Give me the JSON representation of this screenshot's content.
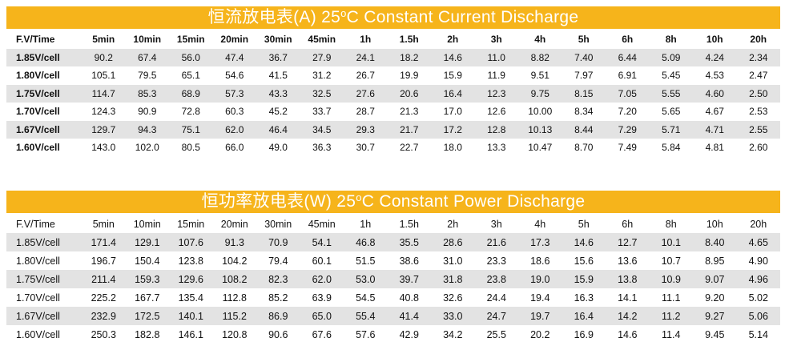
{
  "current": {
    "title_prefix": "恒流放电表(A) 25",
    "title_degree": "o",
    "title_suffix": "C  Constant Current Discharge",
    "headers": [
      "F.V/Time",
      "5min",
      "10min",
      "15min",
      "20min",
      "30min",
      "45min",
      "1h",
      "1.5h",
      "2h",
      "3h",
      "4h",
      "5h",
      "6h",
      "8h",
      "10h",
      "20h"
    ],
    "rows": [
      [
        "1.85V/cell",
        "90.2",
        "67.4",
        "56.0",
        "47.4",
        "36.7",
        "27.9",
        "24.1",
        "18.2",
        "14.6",
        "11.0",
        "8.82",
        "7.40",
        "6.44",
        "5.09",
        "4.24",
        "2.34"
      ],
      [
        "1.80V/cell",
        "105.1",
        "79.5",
        "65.1",
        "54.6",
        "41.5",
        "31.2",
        "26.7",
        "19.9",
        "15.9",
        "11.9",
        "9.51",
        "7.97",
        "6.91",
        "5.45",
        "4.53",
        "2.47"
      ],
      [
        "1.75V/cell",
        "114.7",
        "85.3",
        "68.9",
        "57.3",
        "43.3",
        "32.5",
        "27.6",
        "20.6",
        "16.4",
        "12.3",
        "9.75",
        "8.15",
        "7.05",
        "5.55",
        "4.60",
        "2.50"
      ],
      [
        "1.70V/cell",
        "124.3",
        "90.9",
        "72.8",
        "60.3",
        "45.2",
        "33.7",
        "28.7",
        "21.3",
        "17.0",
        "12.6",
        "10.00",
        "8.34",
        "7.20",
        "5.65",
        "4.67",
        "2.53"
      ],
      [
        "1.67V/cell",
        "129.7",
        "94.3",
        "75.1",
        "62.0",
        "46.4",
        "34.5",
        "29.3",
        "21.7",
        "17.2",
        "12.8",
        "10.13",
        "8.44",
        "7.29",
        "5.71",
        "4.71",
        "2.55"
      ],
      [
        "1.60V/cell",
        "143.0",
        "102.0",
        "80.5",
        "66.0",
        "49.0",
        "36.3",
        "30.7",
        "22.7",
        "18.0",
        "13.3",
        "10.47",
        "8.70",
        "7.49",
        "5.84",
        "4.81",
        "2.60"
      ]
    ]
  },
  "power": {
    "title_prefix": "恒功率放电表(W) 25",
    "title_degree": "o",
    "title_suffix": "C  Constant Power Discharge",
    "headers": [
      "F.V/Time",
      "5min",
      "10min",
      "15min",
      "20min",
      "30min",
      "45min",
      "1h",
      "1.5h",
      "2h",
      "3h",
      "4h",
      "5h",
      "6h",
      "8h",
      "10h",
      "20h"
    ],
    "rows": [
      [
        "1.85V/cell",
        "171.4",
        "129.1",
        "107.6",
        "91.3",
        "70.9",
        "54.1",
        "46.8",
        "35.5",
        "28.6",
        "21.6",
        "17.3",
        "14.6",
        "12.7",
        "10.1",
        "8.40",
        "4.65"
      ],
      [
        "1.80V/cell",
        "196.7",
        "150.4",
        "123.8",
        "104.2",
        "79.4",
        "60.1",
        "51.5",
        "38.6",
        "31.0",
        "23.3",
        "18.6",
        "15.6",
        "13.6",
        "10.7",
        "8.95",
        "4.90"
      ],
      [
        "1.75V/cell",
        "211.4",
        "159.3",
        "129.6",
        "108.2",
        "82.3",
        "62.0",
        "53.0",
        "39.7",
        "31.8",
        "23.8",
        "19.0",
        "15.9",
        "13.8",
        "10.9",
        "9.07",
        "4.96"
      ],
      [
        "1.70V/cell",
        "225.2",
        "167.7",
        "135.4",
        "112.8",
        "85.2",
        "63.9",
        "54.5",
        "40.8",
        "32.6",
        "24.4",
        "19.4",
        "16.3",
        "14.1",
        "11.1",
        "9.20",
        "5.02"
      ],
      [
        "1.67V/cell",
        "232.9",
        "172.5",
        "140.1",
        "115.2",
        "86.9",
        "65.0",
        "55.4",
        "41.4",
        "33.0",
        "24.7",
        "19.7",
        "16.4",
        "14.2",
        "11.2",
        "9.27",
        "5.06"
      ],
      [
        "1.60V/cell",
        "250.3",
        "182.8",
        "146.1",
        "120.8",
        "90.6",
        "67.6",
        "57.6",
        "42.9",
        "34.2",
        "25.5",
        "20.2",
        "16.9",
        "14.6",
        "11.4",
        "9.45",
        "5.14"
      ]
    ]
  },
  "colors": {
    "banner": "#f6b41b",
    "row_shade": "#e3e3e3"
  }
}
